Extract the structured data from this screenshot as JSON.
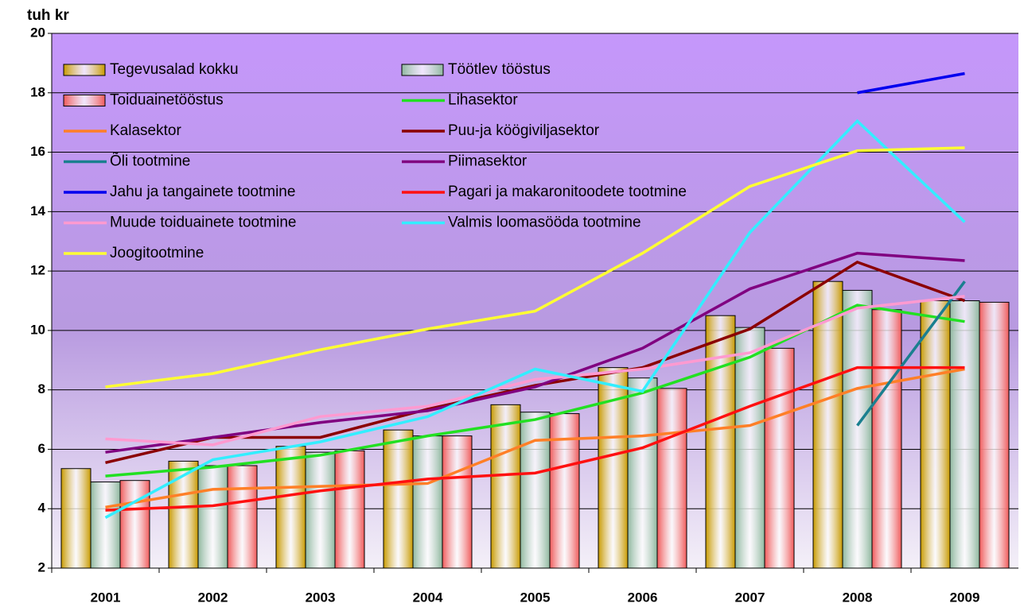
{
  "chart_data": {
    "type": "bar",
    "y_label": "tuh kr",
    "categories": [
      "2001",
      "2002",
      "2003",
      "2004",
      "2005",
      "2006",
      "2007",
      "2008",
      "2009"
    ],
    "ylim": [
      2,
      20
    ],
    "yticks": [
      2,
      4,
      6,
      8,
      10,
      12,
      14,
      16,
      18,
      20
    ],
    "grid": true,
    "legend": "top-left",
    "series": [
      {
        "name": "Tegevusalad kokku",
        "type": "bar",
        "color": "#c89a00",
        "values": [
          5.35,
          5.6,
          6.1,
          6.65,
          7.5,
          8.75,
          10.5,
          11.65,
          11.0
        ]
      },
      {
        "name": "Töötlev tööstus",
        "type": "bar",
        "color": "#8fb89f",
        "values": [
          4.9,
          5.45,
          5.9,
          6.45,
          7.25,
          8.4,
          10.1,
          11.35,
          11.0
        ]
      },
      {
        "name": "Toiduainetööstus",
        "type": "bar",
        "color": "#f05a5a",
        "values": [
          4.95,
          5.45,
          5.95,
          6.45,
          7.2,
          8.05,
          9.4,
          10.7,
          10.95
        ]
      },
      {
        "name": "Lihasektor",
        "type": "line",
        "color": "#22e022",
        "values": [
          5.1,
          5.4,
          5.8,
          6.45,
          7.0,
          7.9,
          9.1,
          10.85,
          10.3
        ]
      },
      {
        "name": "Kalasektor",
        "type": "line",
        "color": "#ff7f27",
        "values": [
          4.05,
          4.65,
          4.75,
          4.85,
          6.3,
          6.45,
          6.8,
          8.05,
          8.7
        ]
      },
      {
        "name": "Puu-ja köögiviljasektor",
        "type": "line",
        "color": "#8b0000",
        "values": [
          5.55,
          6.4,
          6.4,
          7.35,
          8.15,
          8.75,
          10.05,
          12.3,
          11.0
        ]
      },
      {
        "name": "Õli tootmine",
        "type": "line",
        "color": "#1a7f8f",
        "values": [
          null,
          null,
          null,
          null,
          null,
          null,
          null,
          6.8,
          11.65
        ]
      },
      {
        "name": "Piimasektor",
        "type": "line",
        "color": "#800080",
        "values": [
          5.9,
          6.4,
          6.9,
          7.3,
          8.1,
          9.4,
          11.4,
          12.6,
          12.35
        ]
      },
      {
        "name": "Jahu ja tangainete tootmine",
        "type": "line",
        "color": "#0000ee",
        "values": [
          null,
          null,
          null,
          null,
          null,
          null,
          null,
          18.0,
          18.65
        ]
      },
      {
        "name": "Pagari ja makaronitoodete tootmine",
        "type": "line",
        "color": "#ff1010",
        "values": [
          3.95,
          4.1,
          4.6,
          5.0,
          5.2,
          6.05,
          7.45,
          8.75,
          8.75
        ]
      },
      {
        "name": "Muude toiduainete tootmine",
        "type": "line",
        "color": "#ff9ad0",
        "values": [
          6.35,
          6.15,
          7.1,
          7.45,
          8.35,
          8.7,
          9.25,
          10.75,
          11.15
        ]
      },
      {
        "name": "Valmis loomasööda tootmine",
        "type": "line",
        "color": "#33eeff",
        "values": [
          3.7,
          5.65,
          6.25,
          7.1,
          8.7,
          7.95,
          13.3,
          17.05,
          13.65
        ]
      },
      {
        "name": "Joogitootmine",
        "type": "line",
        "color": "#ffff33",
        "values": [
          8.1,
          8.55,
          9.35,
          10.05,
          10.65,
          12.6,
          14.85,
          16.05,
          16.15
        ]
      }
    ]
  }
}
